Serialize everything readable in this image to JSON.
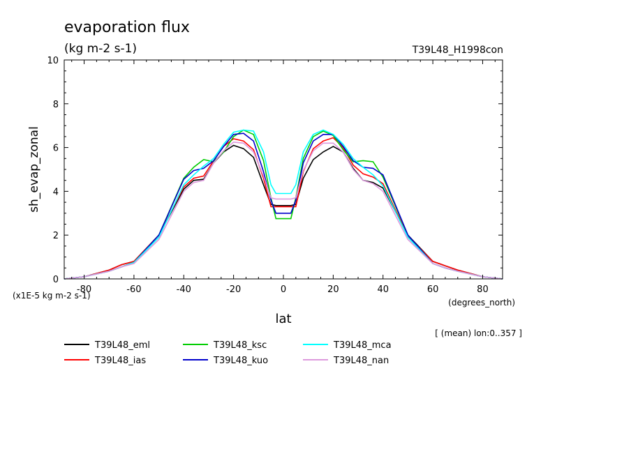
{
  "chart_data": {
    "type": "line",
    "title": "evaporation flux",
    "subtitle": "(kg m-2 s-1)",
    "run_label": "T39L48_H1998con",
    "ylabel": "sh_evap_zonal",
    "xlabel": "lat",
    "x_unit": "(degrees_north)",
    "y_scale_note": "(x1E-5 kg m-2 s-1)",
    "footnote": "[ (mean) lon:0..357 ]",
    "xlim": [
      -88,
      88
    ],
    "ylim": [
      0,
      10
    ],
    "x_ticks": [
      -80,
      -60,
      -40,
      -20,
      0,
      20,
      40,
      60,
      80
    ],
    "y_ticks": [
      0,
      2,
      4,
      6,
      8,
      10
    ],
    "legend_position": "bottom",
    "series": [
      {
        "name": "T39L48_eml",
        "color": "#000000",
        "x": [
          -88,
          -80,
          -70,
          -65,
          -60,
          -50,
          -40,
          -36,
          -32,
          -28,
          -24,
          -20,
          -16,
          -12,
          -8,
          -5,
          -3,
          0,
          3,
          5,
          8,
          12,
          16,
          20,
          24,
          28,
          32,
          36,
          40,
          50,
          60,
          65,
          70,
          80,
          88
        ],
        "y": [
          0,
          0.1,
          0.4,
          0.65,
          0.8,
          2,
          4.1,
          4.5,
          4.55,
          5.3,
          5.8,
          6.1,
          5.95,
          5.55,
          4.3,
          3.4,
          3.35,
          3.35,
          3.35,
          3.4,
          4.6,
          5.45,
          5.8,
          6.05,
          5.8,
          5.05,
          4.5,
          4.4,
          4.15,
          2.0,
          0.8,
          0.6,
          0.4,
          0.1,
          0
        ]
      },
      {
        "name": "T39L48_ias",
        "color": "#ff0000",
        "x": [
          -88,
          -80,
          -70,
          -65,
          -60,
          -50,
          -40,
          -36,
          -32,
          -28,
          -24,
          -20,
          -16,
          -12,
          -8,
          -5,
          -3,
          0,
          3,
          5,
          8,
          12,
          16,
          20,
          24,
          28,
          32,
          36,
          40,
          50,
          60,
          65,
          70,
          80,
          88
        ],
        "y": [
          0,
          0.1,
          0.4,
          0.65,
          0.8,
          2,
          4.2,
          4.6,
          4.7,
          5.4,
          6.05,
          6.4,
          6.3,
          5.9,
          4.6,
          3.3,
          3.3,
          3.3,
          3.3,
          3.3,
          4.9,
          5.95,
          6.3,
          6.45,
          6.0,
          5.2,
          4.8,
          4.65,
          4.35,
          1.95,
          0.8,
          0.6,
          0.4,
          0.1,
          0
        ]
      },
      {
        "name": "T39L48_ksc",
        "color": "#00cc00",
        "x": [
          -88,
          -80,
          -70,
          -65,
          -60,
          -50,
          -40,
          -36,
          -32,
          -28,
          -24,
          -20,
          -16,
          -12,
          -8,
          -5,
          -3,
          0,
          3,
          5,
          8,
          12,
          16,
          20,
          24,
          28,
          32,
          36,
          40,
          50,
          60,
          65,
          70,
          80,
          88
        ],
        "y": [
          0,
          0.1,
          0.35,
          0.55,
          0.75,
          2,
          4.6,
          5.1,
          5.45,
          5.35,
          5.8,
          6.5,
          6.8,
          6.6,
          5.4,
          3.7,
          2.75,
          2.75,
          2.75,
          3.7,
          5.5,
          6.5,
          6.75,
          6.55,
          5.9,
          5.35,
          5.4,
          5.35,
          4.65,
          2.0,
          0.7,
          0.5,
          0.35,
          0.1,
          0
        ]
      },
      {
        "name": "T39L48_kuo",
        "color": "#0000cc",
        "x": [
          -88,
          -80,
          -70,
          -65,
          -60,
          -50,
          -40,
          -36,
          -32,
          -28,
          -24,
          -20,
          -16,
          -12,
          -8,
          -5,
          -3,
          0,
          3,
          5,
          8,
          12,
          16,
          20,
          24,
          28,
          32,
          36,
          40,
          50,
          60,
          65,
          70,
          80,
          88
        ],
        "y": [
          0,
          0.1,
          0.35,
          0.55,
          0.75,
          2,
          4.55,
          4.95,
          5.05,
          5.4,
          6.05,
          6.6,
          6.65,
          6.3,
          4.9,
          3.6,
          3.0,
          3.0,
          3.0,
          3.6,
          5.3,
          6.3,
          6.6,
          6.6,
          6.05,
          5.4,
          5.1,
          5.05,
          4.75,
          2.0,
          0.7,
          0.5,
          0.35,
          0.1,
          0
        ]
      },
      {
        "name": "T39L48_mca",
        "color": "#00ffff",
        "x": [
          -88,
          -80,
          -70,
          -65,
          -60,
          -50,
          -40,
          -36,
          -32,
          -28,
          -24,
          -20,
          -16,
          -12,
          -8,
          -5,
          -3,
          0,
          3,
          5,
          8,
          12,
          16,
          20,
          24,
          28,
          32,
          36,
          40,
          50,
          60,
          65,
          70,
          80,
          88
        ],
        "y": [
          0,
          0.1,
          0.35,
          0.55,
          0.75,
          1.9,
          4.3,
          4.75,
          5.15,
          5.5,
          6.15,
          6.7,
          6.8,
          6.75,
          5.8,
          4.3,
          3.9,
          3.9,
          3.9,
          4.3,
          5.8,
          6.6,
          6.8,
          6.6,
          6.15,
          5.5,
          5.1,
          4.75,
          4.25,
          1.9,
          0.7,
          0.5,
          0.35,
          0.1,
          0
        ]
      },
      {
        "name": "T39L48_nan",
        "color": "#dd99dd",
        "x": [
          -88,
          -80,
          -70,
          -65,
          -60,
          -50,
          -40,
          -36,
          -32,
          -28,
          -24,
          -20,
          -16,
          -12,
          -8,
          -5,
          -3,
          0,
          3,
          5,
          8,
          12,
          16,
          20,
          24,
          28,
          32,
          36,
          40,
          50,
          60,
          65,
          70,
          80,
          88
        ],
        "y": [
          0,
          0.1,
          0.35,
          0.55,
          0.7,
          1.8,
          4.0,
          4.4,
          4.5,
          5.3,
          5.85,
          6.25,
          6.2,
          5.8,
          4.7,
          3.7,
          3.65,
          3.65,
          3.65,
          3.7,
          4.95,
          5.85,
          6.2,
          6.2,
          5.8,
          5.0,
          4.5,
          4.35,
          4.0,
          1.8,
          0.7,
          0.5,
          0.35,
          0.1,
          0
        ]
      }
    ]
  }
}
